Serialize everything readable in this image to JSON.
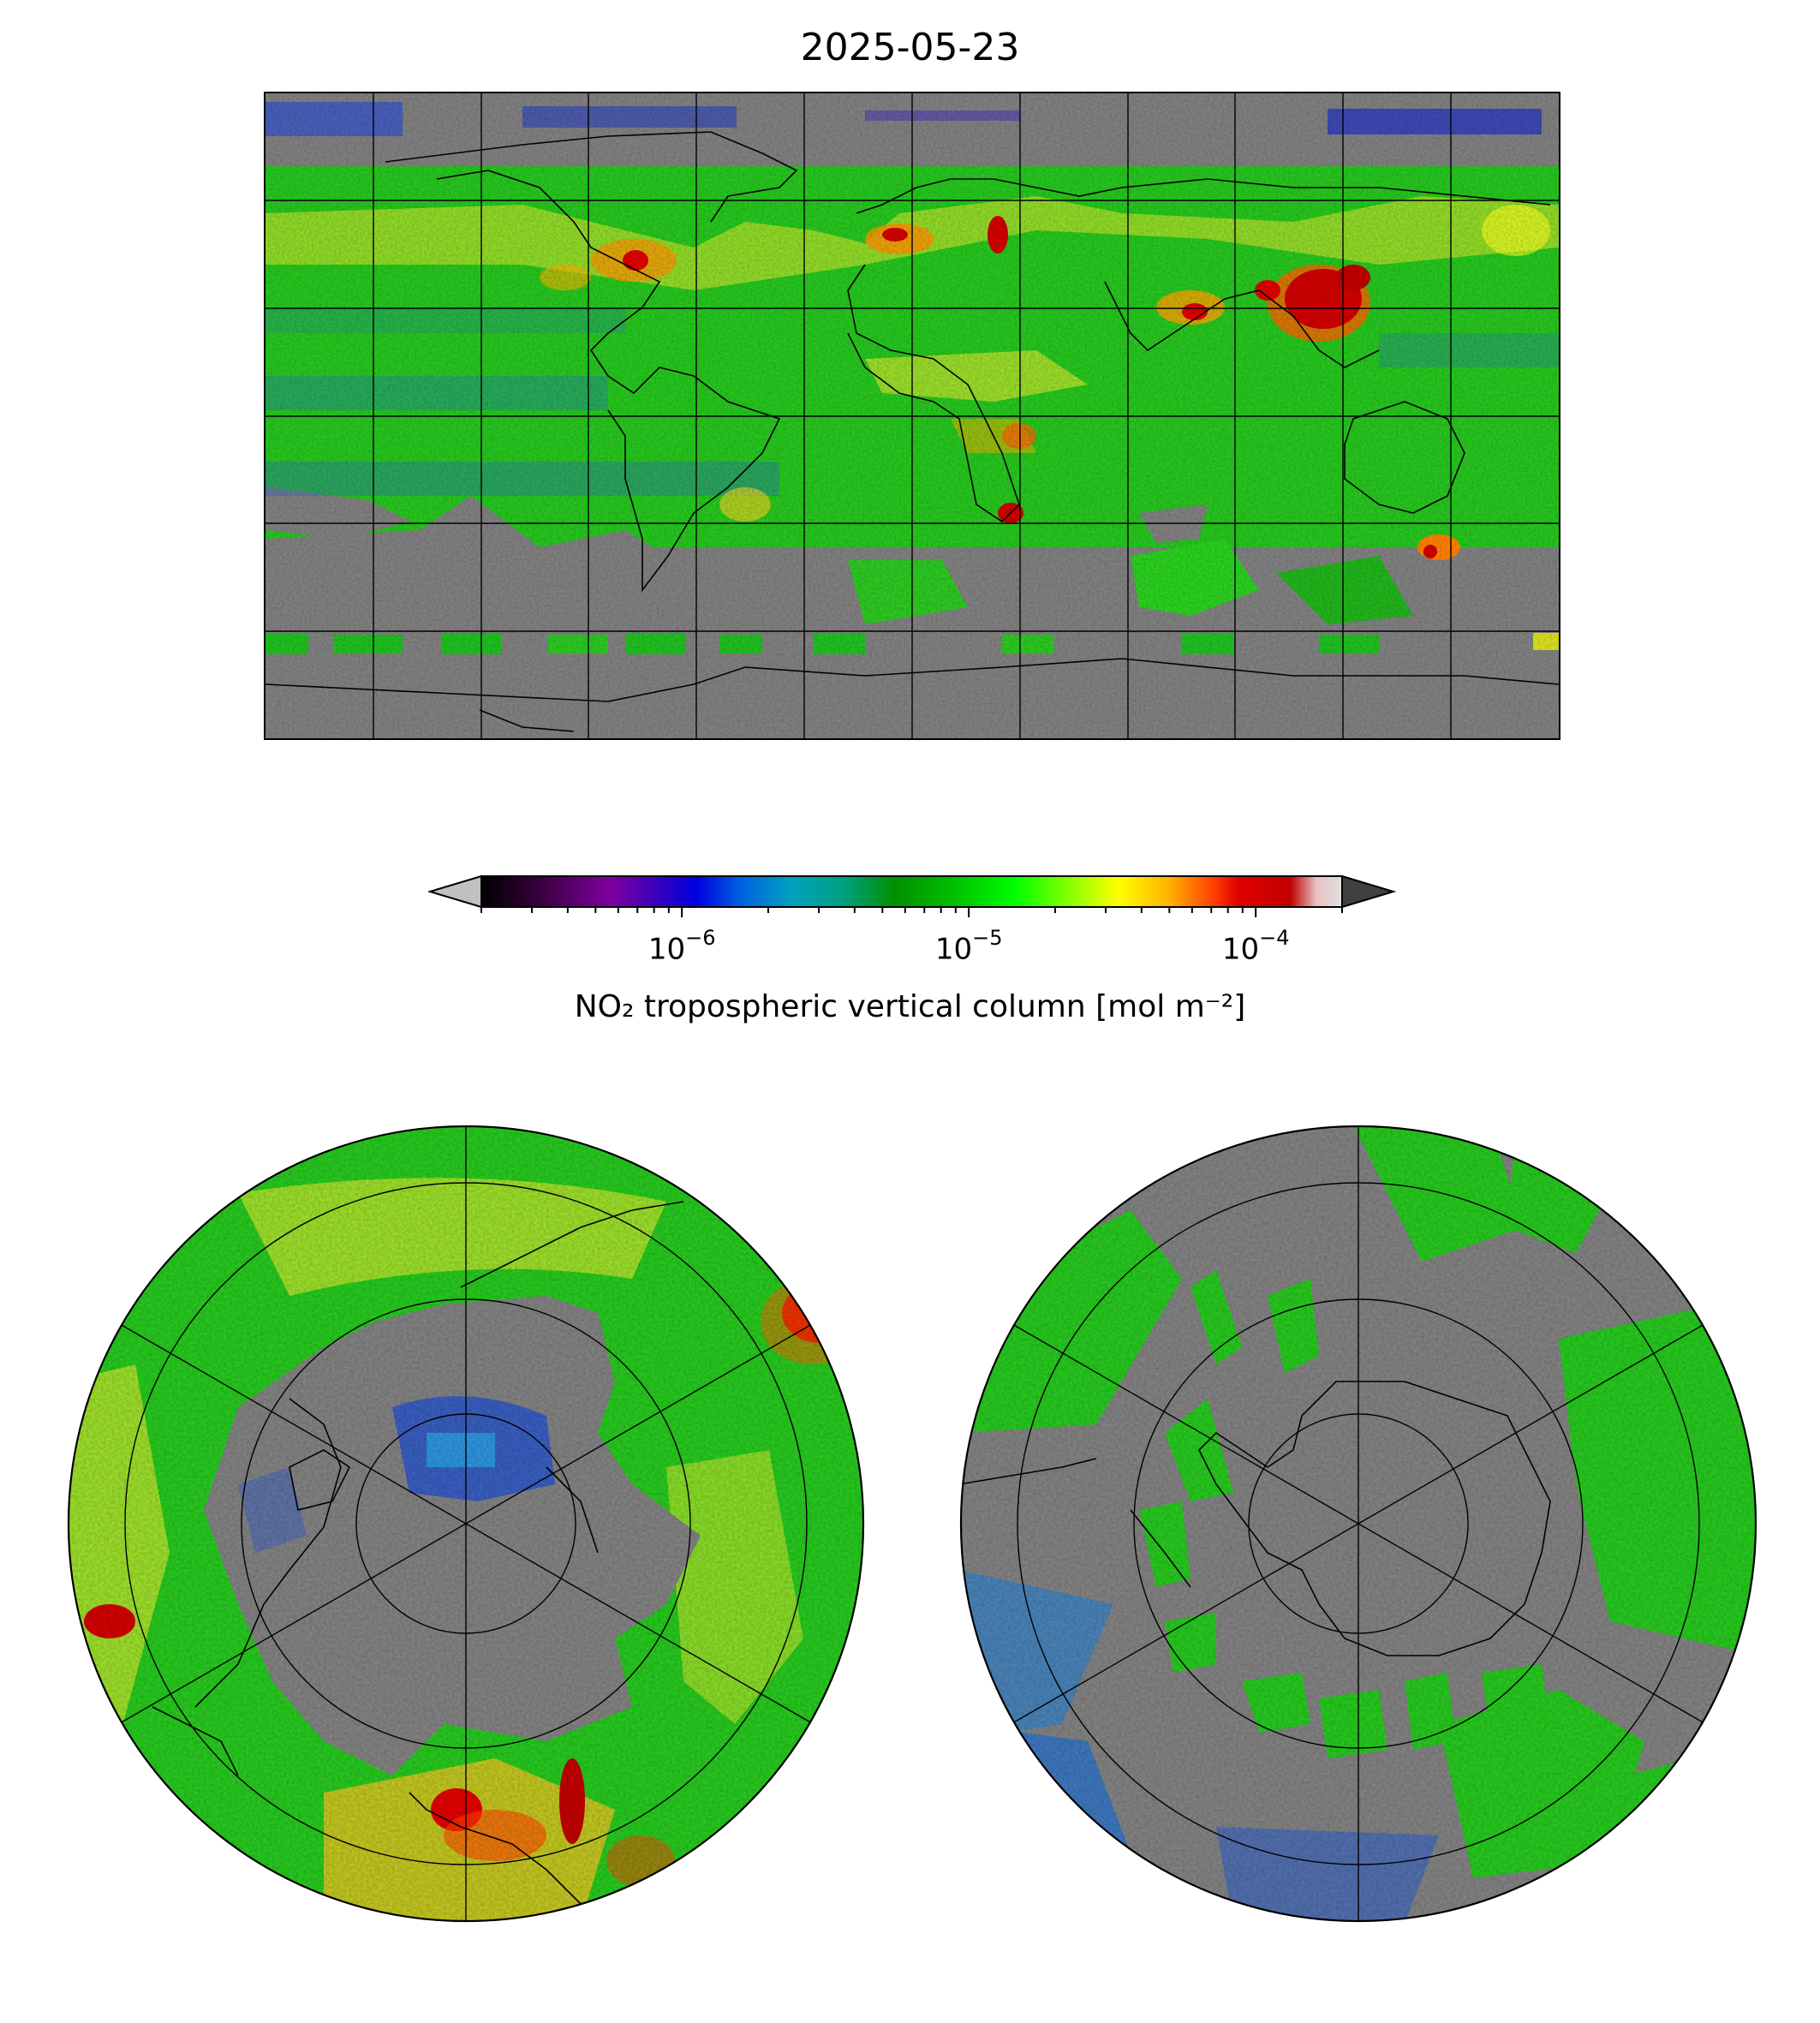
{
  "title": "2025-05-23",
  "colorbar": {
    "label": "NO₂ tropospheric vertical column [mol m⁻²]",
    "scale": "log",
    "range": [
      2e-07,
      0.0002
    ],
    "ticks": [
      {
        "base": "10",
        "exp": "−6",
        "value": 1e-06
      },
      {
        "base": "10",
        "exp": "−5",
        "value": 1e-05
      },
      {
        "base": "10",
        "exp": "−4",
        "value": 0.0001
      }
    ],
    "extend": "both",
    "under_color": "#c0c0c0",
    "over_color": "#404040",
    "colors": [
      "#000000",
      "#5a0060",
      "#7f00a0",
      "#3000c0",
      "#0000e0",
      "#0060e0",
      "#00a0c0",
      "#00a080",
      "#009000",
      "#00c000",
      "#00ff00",
      "#80ff00",
      "#ffff00",
      "#ffb000",
      "#ff4000",
      "#e00000",
      "#c00000",
      "#e0e0e0"
    ]
  },
  "maps": {
    "global": {
      "projection": "PlateCarree",
      "nodata_color": "#808080"
    },
    "north_polar": {
      "projection": "NorthPolarStereo",
      "nodata_color": "#808080"
    },
    "south_polar": {
      "projection": "SouthPolarStereo",
      "nodata_color": "#808080"
    }
  }
}
